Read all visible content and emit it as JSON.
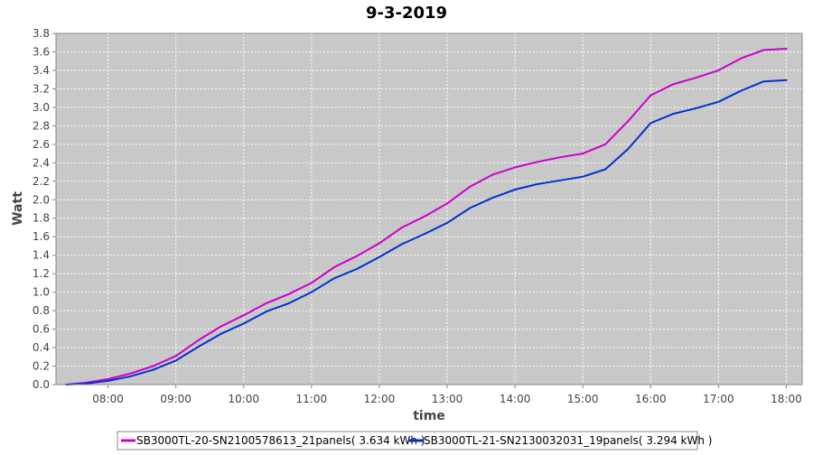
{
  "chart_data": {
    "type": "line",
    "title": "9-3-2019",
    "xlabel": "time",
    "ylabel": "Watt",
    "xlim": [
      "07:14",
      "18:14"
    ],
    "ylim": [
      0,
      3.8
    ],
    "x_ticks": [
      "08:00",
      "09:00",
      "10:00",
      "11:00",
      "12:00",
      "13:00",
      "14:00",
      "15:00",
      "16:00",
      "17:00",
      "18:00"
    ],
    "y_ticks": [
      "0.0",
      "0.2",
      "0.4",
      "0.6",
      "0.8",
      "1.0",
      "1.2",
      "1.4",
      "1.6",
      "1.8",
      "2.0",
      "2.2",
      "2.4",
      "2.6",
      "2.8",
      "3.0",
      "3.2",
      "3.4",
      "3.6",
      "3.8"
    ],
    "grid": true,
    "background": "#c8c8c8",
    "legend_position": "bottom",
    "series": [
      {
        "name": "SB3000TL-20-SN2100578613_21panels( 3.634 kWh )",
        "color": "#cc00cc",
        "points": [
          [
            "07:23",
            0.0
          ],
          [
            "07:40",
            0.02
          ],
          [
            "08:00",
            0.06
          ],
          [
            "08:20",
            0.12
          ],
          [
            "08:40",
            0.2
          ],
          [
            "09:00",
            0.31
          ],
          [
            "09:20",
            0.48
          ],
          [
            "09:40",
            0.63
          ],
          [
            "10:00",
            0.75
          ],
          [
            "10:20",
            0.88
          ],
          [
            "10:40",
            0.98
          ],
          [
            "11:00",
            1.1
          ],
          [
            "11:20",
            1.27
          ],
          [
            "11:40",
            1.39
          ],
          [
            "12:00",
            1.53
          ],
          [
            "12:20",
            1.7
          ],
          [
            "12:40",
            1.82
          ],
          [
            "13:00",
            1.96
          ],
          [
            "13:20",
            2.14
          ],
          [
            "13:40",
            2.27
          ],
          [
            "14:00",
            2.35
          ],
          [
            "14:20",
            2.41
          ],
          [
            "14:40",
            2.46
          ],
          [
            "15:00",
            2.5
          ],
          [
            "15:20",
            2.6
          ],
          [
            "15:40",
            2.85
          ],
          [
            "16:00",
            3.13
          ],
          [
            "16:20",
            3.25
          ],
          [
            "16:40",
            3.32
          ],
          [
            "17:00",
            3.4
          ],
          [
            "17:20",
            3.53
          ],
          [
            "17:40",
            3.62
          ],
          [
            "18:00",
            3.634
          ]
        ]
      },
      {
        "name": "SB3000TL-21-SN2130032031_19panels( 3.294 kWh )",
        "color": "#0033cc",
        "points": [
          [
            "07:23",
            0.0
          ],
          [
            "07:40",
            0.01
          ],
          [
            "08:00",
            0.04
          ],
          [
            "08:20",
            0.09
          ],
          [
            "08:40",
            0.16
          ],
          [
            "09:00",
            0.26
          ],
          [
            "09:20",
            0.41
          ],
          [
            "09:40",
            0.55
          ],
          [
            "10:00",
            0.66
          ],
          [
            "10:20",
            0.79
          ],
          [
            "10:40",
            0.88
          ],
          [
            "11:00",
            1.0
          ],
          [
            "11:20",
            1.15
          ],
          [
            "11:40",
            1.25
          ],
          [
            "12:00",
            1.38
          ],
          [
            "12:20",
            1.52
          ],
          [
            "12:40",
            1.63
          ],
          [
            "13:00",
            1.75
          ],
          [
            "13:20",
            1.91
          ],
          [
            "13:40",
            2.02
          ],
          [
            "14:00",
            2.11
          ],
          [
            "14:20",
            2.17
          ],
          [
            "14:40",
            2.21
          ],
          [
            "15:00",
            2.25
          ],
          [
            "15:20",
            2.33
          ],
          [
            "15:40",
            2.55
          ],
          [
            "16:00",
            2.83
          ],
          [
            "16:20",
            2.93
          ],
          [
            "16:40",
            2.99
          ],
          [
            "17:00",
            3.06
          ],
          [
            "17:20",
            3.18
          ],
          [
            "17:40",
            3.28
          ],
          [
            "18:00",
            3.294
          ]
        ]
      }
    ]
  }
}
